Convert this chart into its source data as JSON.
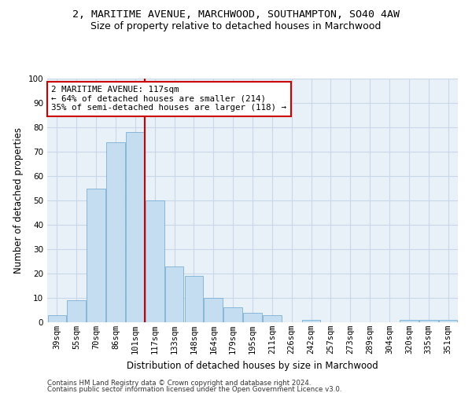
{
  "title": "2, MARITIME AVENUE, MARCHWOOD, SOUTHAMPTON, SO40 4AW",
  "subtitle": "Size of property relative to detached houses in Marchwood",
  "xlabel": "Distribution of detached houses by size in Marchwood",
  "ylabel": "Number of detached properties",
  "categories": [
    "39sqm",
    "55sqm",
    "70sqm",
    "86sqm",
    "101sqm",
    "117sqm",
    "133sqm",
    "148sqm",
    "164sqm",
    "179sqm",
    "195sqm",
    "211sqm",
    "226sqm",
    "242sqm",
    "257sqm",
    "273sqm",
    "289sqm",
    "304sqm",
    "320sqm",
    "335sqm",
    "351sqm"
  ],
  "values": [
    3,
    9,
    55,
    74,
    78,
    50,
    23,
    19,
    10,
    6,
    4,
    3,
    0,
    1,
    0,
    0,
    0,
    0,
    1,
    1,
    1
  ],
  "bar_color": "#c5ddf0",
  "bar_edge_color": "#7ab0d4",
  "vline_x_index": 4,
  "vline_color": "#cc0000",
  "annotation_title": "2 MARITIME AVENUE: 117sqm",
  "annotation_line1": "← 64% of detached houses are smaller (214)",
  "annotation_line2": "35% of semi-detached houses are larger (118) →",
  "annotation_box_color": "#ffffff",
  "annotation_box_edge": "#cc0000",
  "grid_color": "#c8d8e8",
  "bg_color": "#e8f0f8",
  "footer1": "Contains HM Land Registry data © Crown copyright and database right 2024.",
  "footer2": "Contains public sector information licensed under the Open Government Licence v3.0.",
  "ylim": [
    0,
    100
  ],
  "title_fontsize": 9.5,
  "subtitle_fontsize": 9,
  "axis_label_fontsize": 8.5,
  "tick_fontsize": 7.5,
  "footer_fontsize": 6.2
}
